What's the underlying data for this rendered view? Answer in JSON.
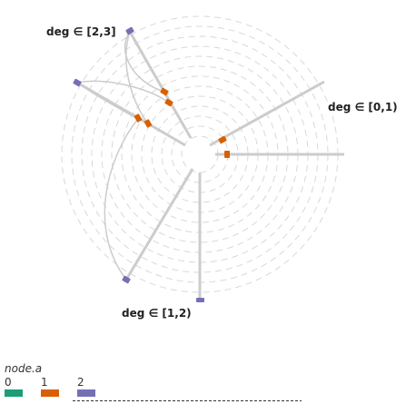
{
  "chart_data": {
    "type": "hive-plot",
    "axes": [
      {
        "id": "a0",
        "label": "deg ∈ [0,1)"
      },
      {
        "id": "a1",
        "label": "deg ∈ [1,2)"
      },
      {
        "id": "a2",
        "label": "deg ∈ [2,3]"
      }
    ],
    "legend": {
      "title": "node.a",
      "placement": "bottom-left",
      "items": [
        {
          "label": "0",
          "color": "#1b9e77"
        },
        {
          "label": "1",
          "color": "#d95f02"
        },
        {
          "label": "2",
          "color": "#7570b3"
        }
      ]
    },
    "colors": {
      "axis": "#cccccc",
      "edge": "#cccccc",
      "grid": "#d8d8d8",
      "legend_rule": "#333333"
    }
  }
}
